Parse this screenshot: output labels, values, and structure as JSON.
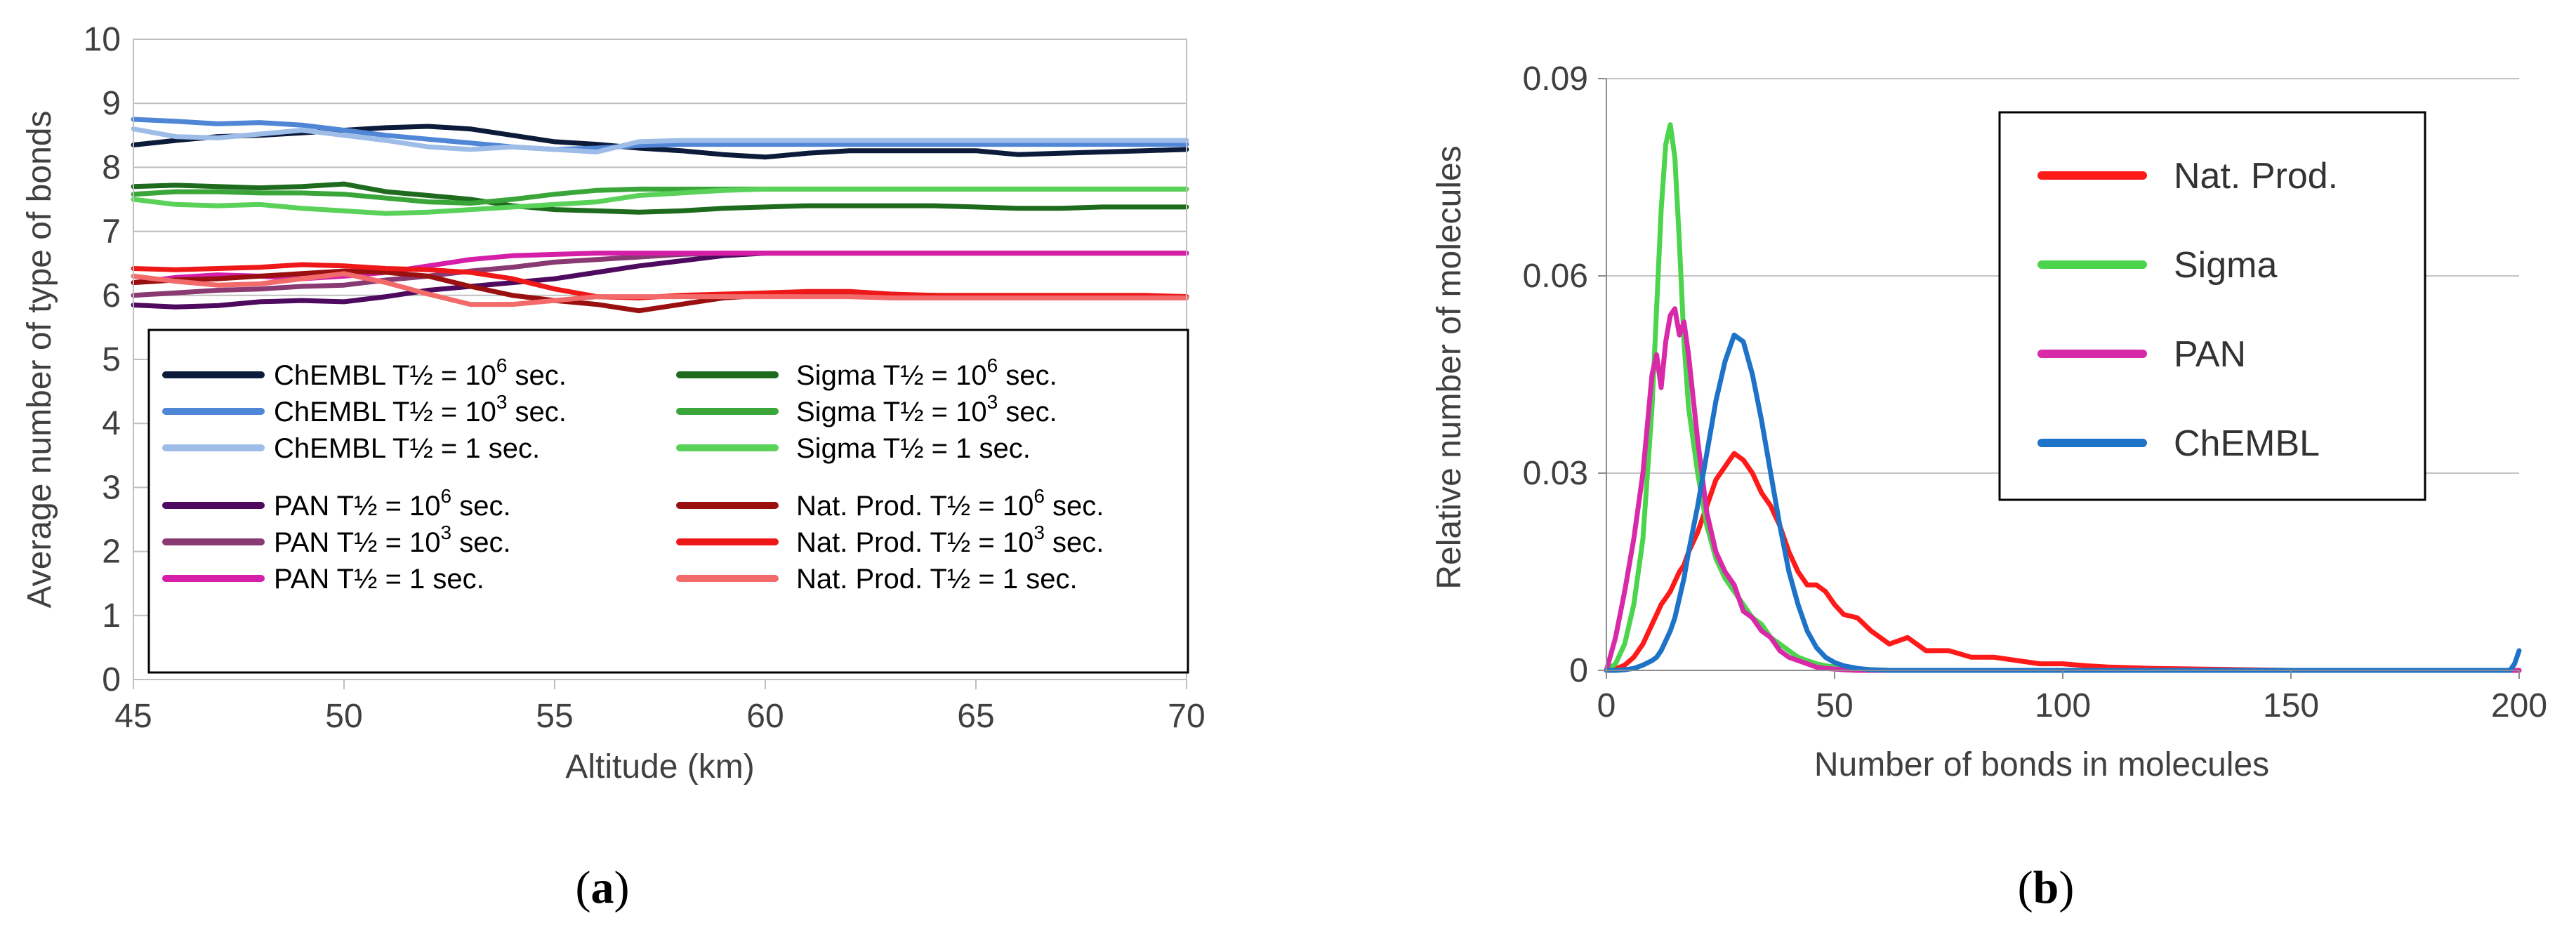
{
  "chart_data": [
    {
      "id": "a",
      "type": "line",
      "caption": "(a)",
      "caption_letter": "a",
      "xlabel": "Altitude (km)",
      "ylabel": "Average number of type of bonds",
      "xlim": [
        45,
        70
      ],
      "ylim": [
        0,
        10
      ],
      "xticks": [
        45,
        50,
        55,
        60,
        65,
        70
      ],
      "yticks": [
        0,
        1,
        2,
        3,
        4,
        5,
        6,
        7,
        8,
        9,
        10
      ],
      "grid": true,
      "legend_position": "lower-center",
      "x": [
        45,
        46,
        47,
        48,
        49,
        50,
        51,
        52,
        53,
        54,
        55,
        56,
        57,
        58,
        59,
        60,
        61,
        62,
        63,
        64,
        65,
        66,
        67,
        68,
        69,
        70
      ],
      "series": [
        {
          "name": "ChEMBL T½ = 10⁶ sec.",
          "label_prefix": "ChEMBL T½ = 10",
          "label_exp": "6",
          "label_suffix": " sec.",
          "color": "#0d1b3a",
          "values": [
            8.35,
            8.42,
            8.48,
            8.5,
            8.54,
            8.58,
            8.62,
            8.64,
            8.6,
            8.5,
            8.4,
            8.36,
            8.3,
            8.26,
            8.2,
            8.16,
            8.22,
            8.26,
            8.26,
            8.26,
            8.26,
            8.2,
            8.22,
            8.24,
            8.26,
            8.28
          ]
        },
        {
          "name": "ChEMBL T½ = 10³ sec.",
          "label_prefix": "ChEMBL T½ = 10",
          "label_exp": "3",
          "label_suffix": " sec.",
          "color": "#4f86d6",
          "values": [
            8.75,
            8.72,
            8.68,
            8.7,
            8.66,
            8.58,
            8.5,
            8.44,
            8.38,
            8.32,
            8.28,
            8.3,
            8.34,
            8.36,
            8.36,
            8.36,
            8.36,
            8.36,
            8.36,
            8.36,
            8.36,
            8.36,
            8.36,
            8.36,
            8.36,
            8.36
          ]
        },
        {
          "name": "ChEMBL T½ = 1 sec.",
          "label_prefix": "ChEMBL T½ = 1",
          "label_exp": "",
          "label_suffix": " sec.",
          "color": "#9dbde8",
          "values": [
            8.6,
            8.48,
            8.46,
            8.52,
            8.58,
            8.5,
            8.42,
            8.32,
            8.28,
            8.32,
            8.28,
            8.24,
            8.4,
            8.42,
            8.42,
            8.42,
            8.42,
            8.42,
            8.42,
            8.42,
            8.42,
            8.42,
            8.42,
            8.42,
            8.42,
            8.42
          ]
        },
        {
          "name": "Sigma T½ = 10⁶ sec.",
          "label_prefix": "Sigma T½ = 10",
          "label_exp": "6",
          "label_suffix": " sec.",
          "color": "#1e6b1e",
          "values": [
            7.7,
            7.72,
            7.7,
            7.68,
            7.7,
            7.74,
            7.62,
            7.56,
            7.5,
            7.4,
            7.34,
            7.32,
            7.3,
            7.32,
            7.36,
            7.38,
            7.4,
            7.4,
            7.4,
            7.4,
            7.38,
            7.36,
            7.36,
            7.38,
            7.38,
            7.38
          ]
        },
        {
          "name": "Sigma T½ = 10³ sec.",
          "label_prefix": "Sigma T½ = 10",
          "label_exp": "3",
          "label_suffix": " sec.",
          "color": "#3aa63a",
          "values": [
            7.58,
            7.62,
            7.62,
            7.6,
            7.6,
            7.58,
            7.52,
            7.46,
            7.44,
            7.5,
            7.58,
            7.64,
            7.66,
            7.66,
            7.66,
            7.66,
            7.66,
            7.66,
            7.66,
            7.66,
            7.66,
            7.66,
            7.66,
            7.66,
            7.66,
            7.66
          ]
        },
        {
          "name": "Sigma T½ = 1 sec.",
          "label_prefix": "Sigma T½ = 1",
          "label_exp": "",
          "label_suffix": " sec.",
          "color": "#5ad25a",
          "values": [
            7.5,
            7.42,
            7.4,
            7.42,
            7.36,
            7.32,
            7.28,
            7.3,
            7.34,
            7.38,
            7.42,
            7.46,
            7.56,
            7.6,
            7.64,
            7.66,
            7.66,
            7.66,
            7.66,
            7.66,
            7.66,
            7.66,
            7.66,
            7.66,
            7.66,
            7.66
          ]
        },
        {
          "name": "PAN T½ = 10⁶ sec.",
          "label_prefix": "PAN T½ = 10",
          "label_exp": "6",
          "label_suffix": " sec.",
          "color": "#4e0a5e",
          "values": [
            5.85,
            5.82,
            5.84,
            5.9,
            5.92,
            5.9,
            5.98,
            6.08,
            6.14,
            6.2,
            6.26,
            6.36,
            6.46,
            6.54,
            6.62,
            6.66,
            6.66,
            6.66,
            6.66,
            6.66,
            6.66,
            6.66,
            6.66,
            6.66,
            6.66,
            6.66
          ]
        },
        {
          "name": "PAN T½ = 10³ sec.",
          "label_prefix": "PAN T½ = 10",
          "label_exp": "3",
          "label_suffix": " sec.",
          "color": "#8a3a72",
          "values": [
            6.0,
            6.04,
            6.08,
            6.1,
            6.14,
            6.16,
            6.24,
            6.3,
            6.38,
            6.44,
            6.52,
            6.56,
            6.6,
            6.64,
            6.66,
            6.66,
            6.66,
            6.66,
            6.66,
            6.66,
            6.66,
            6.66,
            6.66,
            6.66,
            6.66,
            6.66
          ]
        },
        {
          "name": "PAN T½ = 1 sec.",
          "label_prefix": "PAN T½ = 1",
          "label_exp": "",
          "label_suffix": " sec.",
          "color": "#d61fa8",
          "values": [
            6.2,
            6.28,
            6.32,
            6.3,
            6.26,
            6.3,
            6.36,
            6.46,
            6.56,
            6.62,
            6.64,
            6.66,
            6.66,
            6.66,
            6.66,
            6.66,
            6.66,
            6.66,
            6.66,
            6.66,
            6.66,
            6.66,
            6.66,
            6.66,
            6.66,
            6.66
          ]
        },
        {
          "name": "Nat. Prod. T½ = 10⁶ sec.",
          "label_prefix": "Nat. Prod. T½ = 10",
          "label_exp": "6",
          "label_suffix": " sec.",
          "color": "#9a1010",
          "values": [
            6.2,
            6.24,
            6.26,
            6.3,
            6.34,
            6.38,
            6.36,
            6.3,
            6.14,
            6.0,
            5.92,
            5.86,
            5.76,
            5.86,
            5.96,
            6.0,
            6.02,
            6.02,
            6.0,
            6.0,
            5.98,
            5.98,
            5.98,
            5.98,
            5.98,
            5.98
          ]
        },
        {
          "name": "Nat. Prod. T½ = 10³ sec.",
          "label_prefix": "Nat. Prod. T½ = 10",
          "label_exp": "3",
          "label_suffix": " sec.",
          "color": "#ef1818",
          "values": [
            6.42,
            6.4,
            6.42,
            6.44,
            6.48,
            6.46,
            6.42,
            6.4,
            6.36,
            6.26,
            6.1,
            5.98,
            5.96,
            6.0,
            6.02,
            6.04,
            6.06,
            6.06,
            6.02,
            6.0,
            6.0,
            6.0,
            6.0,
            6.0,
            6.0,
            5.98
          ]
        },
        {
          "name": "Nat. Prod. T½ = 1 sec.",
          "label_prefix": "Nat. Prod. T½ = 1",
          "label_exp": "",
          "label_suffix": " sec.",
          "color": "#f26a6a",
          "values": [
            6.3,
            6.22,
            6.16,
            6.18,
            6.26,
            6.34,
            6.2,
            6.02,
            5.86,
            5.86,
            5.92,
            5.98,
            5.98,
            5.98,
            5.98,
            5.98,
            5.98,
            5.98,
            5.96,
            5.96,
            5.96,
            5.96,
            5.96,
            5.96,
            5.96,
            5.96
          ]
        }
      ]
    },
    {
      "id": "b",
      "type": "line",
      "caption": "(b)",
      "caption_letter": "b",
      "xlabel": "Number of bonds in molecules",
      "ylabel": "Relative number of molecules",
      "xlim": [
        0,
        200
      ],
      "ylim": [
        0,
        0.09
      ],
      "xticks": [
        0,
        50,
        100,
        150,
        200
      ],
      "yticks": [
        0,
        0.03,
        0.06,
        0.09
      ],
      "ytick_labels": [
        "0",
        "0.03",
        "0.06",
        "0.09"
      ],
      "grid": true,
      "legend_position": "top-right",
      "x": [
        0,
        2,
        4,
        6,
        8,
        10,
        11,
        12,
        13,
        14,
        15,
        16,
        17,
        18,
        20,
        22,
        24,
        26,
        28,
        30,
        32,
        34,
        36,
        38,
        40,
        42,
        44,
        46,
        48,
        50,
        52,
        55,
        58,
        62,
        66,
        70,
        75,
        80,
        85,
        90,
        95,
        100,
        105,
        110,
        120,
        130,
        140,
        150,
        160,
        170,
        180,
        190,
        198,
        199,
        200
      ],
      "series": [
        {
          "name": "Nat. Prod.",
          "color": "#ff1a1a",
          "values": [
            0,
            0.0002,
            0.0008,
            0.002,
            0.004,
            0.007,
            0.0085,
            0.01,
            0.011,
            0.012,
            0.0135,
            0.015,
            0.016,
            0.018,
            0.021,
            0.025,
            0.029,
            0.031,
            0.033,
            0.032,
            0.03,
            0.027,
            0.025,
            0.022,
            0.018,
            0.015,
            0.013,
            0.013,
            0.012,
            0.01,
            0.0085,
            0.008,
            0.006,
            0.004,
            0.005,
            0.003,
            0.003,
            0.002,
            0.002,
            0.0015,
            0.001,
            0.001,
            0.0007,
            0.0005,
            0.0003,
            0.0002,
            0.0001,
            0,
            0,
            0,
            0,
            0,
            0,
            0,
            0
          ]
        },
        {
          "name": "Sigma",
          "color": "#4cd44c",
          "values": [
            0,
            0.001,
            0.004,
            0.01,
            0.02,
            0.04,
            0.055,
            0.07,
            0.08,
            0.083,
            0.078,
            0.065,
            0.05,
            0.04,
            0.03,
            0.022,
            0.017,
            0.014,
            0.012,
            0.01,
            0.008,
            0.007,
            0.005,
            0.004,
            0.003,
            0.002,
            0.0015,
            0.001,
            0.0007,
            0.0005,
            0.0003,
            0.0002,
            0.0001,
            0,
            0,
            0,
            0,
            0,
            0,
            0,
            0,
            0,
            0,
            0,
            0,
            0,
            0,
            0,
            0,
            0,
            0,
            0,
            0,
            0,
            0
          ]
        },
        {
          "name": "PAN",
          "color": "#d82aa8",
          "values": [
            0,
            0.005,
            0.012,
            0.02,
            0.03,
            0.045,
            0.048,
            0.043,
            0.05,
            0.054,
            0.055,
            0.051,
            0.053,
            0.048,
            0.035,
            0.024,
            0.018,
            0.015,
            0.013,
            0.009,
            0.008,
            0.006,
            0.005,
            0.003,
            0.002,
            0.0015,
            0.001,
            0.0005,
            0.0003,
            0.0002,
            0.0001,
            0,
            0,
            0,
            0,
            0,
            0,
            0,
            0,
            0,
            0,
            0,
            0,
            0,
            0,
            0,
            0,
            0,
            0,
            0,
            0,
            0,
            0,
            0,
            0
          ]
        },
        {
          "name": "ChEMBL",
          "color": "#1e73c8",
          "values": [
            0,
            0,
            0.0001,
            0.0003,
            0.0008,
            0.0015,
            0.002,
            0.003,
            0.0045,
            0.006,
            0.008,
            0.011,
            0.014,
            0.018,
            0.025,
            0.033,
            0.041,
            0.047,
            0.051,
            0.05,
            0.045,
            0.038,
            0.03,
            0.022,
            0.015,
            0.01,
            0.006,
            0.0035,
            0.002,
            0.0012,
            0.0007,
            0.0003,
            0.0001,
            0,
            0,
            0,
            0,
            0,
            0,
            0,
            0,
            0,
            0,
            0,
            0,
            0,
            0,
            0,
            0,
            0,
            0,
            0,
            0,
            0.001,
            0.003
          ]
        }
      ]
    }
  ]
}
